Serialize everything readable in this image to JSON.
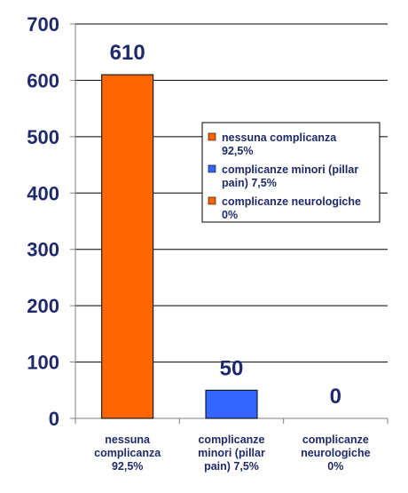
{
  "chart_data": {
    "type": "bar",
    "categories": [
      [
        "nessuna",
        "complicanza",
        "92,5%"
      ],
      [
        "complicanze",
        "minori (pillar",
        "pain) 7,5%"
      ],
      [
        "complicanze",
        "neurologiche",
        "0%"
      ]
    ],
    "values": [
      610,
      50,
      0
    ],
    "value_labels": [
      "610",
      "50",
      "0"
    ],
    "colors": [
      "#ff6600",
      "#3366ff",
      "#ff6600"
    ],
    "ylim": [
      0,
      700
    ],
    "yticks": [
      0,
      100,
      200,
      300,
      400,
      500,
      600,
      700
    ],
    "grid": true,
    "legend": {
      "placement": "right",
      "entries": [
        {
          "lines": [
            "nessuna complicanza",
            "92,5%"
          ],
          "color": "#ff6600"
        },
        {
          "lines": [
            "complicanze minori (pillar",
            "pain) 7,5%"
          ],
          "color": "#3366ff"
        },
        {
          "lines": [
            "complicanze neurologiche",
            "0%"
          ],
          "color": "#ff6600"
        }
      ]
    },
    "text_color": "#1f2a6b"
  }
}
